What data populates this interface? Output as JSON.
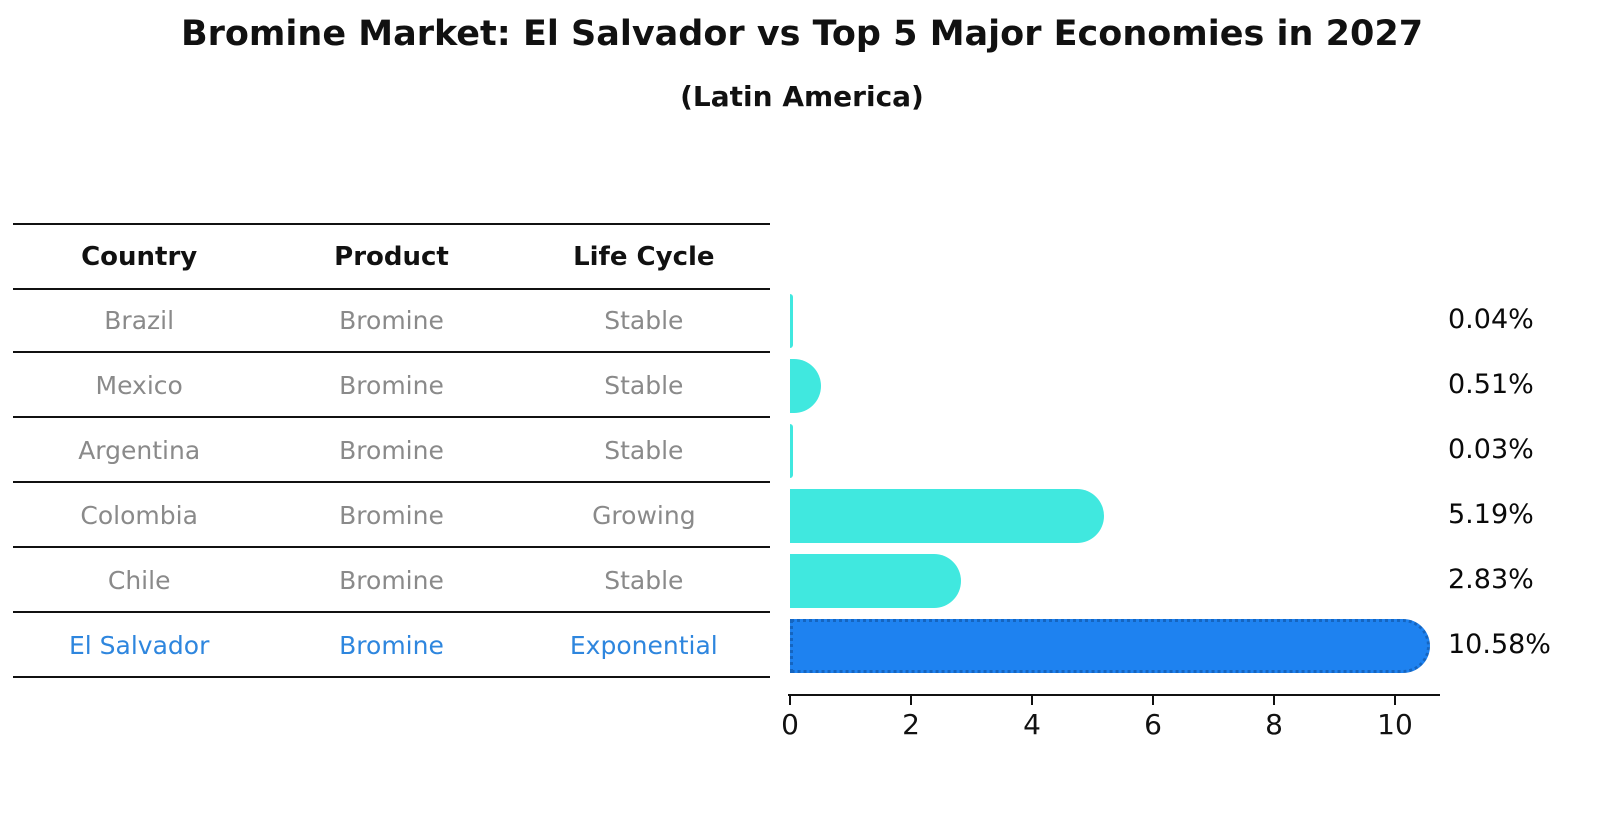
{
  "title": "Bromine Market: El Salvador vs Top 5 Major Economies in 2027",
  "subtitle": "(Latin America)",
  "table": {
    "headers": [
      "Country",
      "Product",
      "Life Cycle"
    ],
    "rows": [
      {
        "country": "Brazil",
        "product": "Bromine",
        "life_cycle": "Stable",
        "highlight": false
      },
      {
        "country": "Mexico",
        "product": "Bromine",
        "life_cycle": "Stable",
        "highlight": false
      },
      {
        "country": "Argentina",
        "product": "Bromine",
        "life_cycle": "Stable",
        "highlight": false
      },
      {
        "country": "Colombia",
        "product": "Bromine",
        "life_cycle": "Growing",
        "highlight": false
      },
      {
        "country": "Chile",
        "product": "Bromine",
        "life_cycle": "Stable",
        "highlight": false
      },
      {
        "country": "El Salvador",
        "product": "Bromine",
        "life_cycle": "Exponential",
        "highlight": true
      }
    ]
  },
  "chart_data": {
    "type": "bar",
    "orientation": "horizontal",
    "title": "Bromine Market: El Salvador vs Top 5 Major Economies in 2027",
    "subtitle": "(Latin America)",
    "categories": [
      "Brazil",
      "Mexico",
      "Argentina",
      "Colombia",
      "Chile",
      "El Salvador"
    ],
    "values": [
      0.04,
      0.51,
      0.03,
      5.19,
      2.83,
      10.58
    ],
    "value_labels": [
      "0.04%",
      "0.51%",
      "0.03%",
      "5.19%",
      "2.83%",
      "10.58%"
    ],
    "xlabel": "",
    "ylabel": "",
    "xlim": [
      0,
      10.75
    ],
    "xticks": [
      0,
      2,
      4,
      6,
      8,
      10
    ],
    "grid": false,
    "legend": "none",
    "highlight_index": 5,
    "colors": {
      "bar": "#40e8df",
      "highlight_bar": "#1e82f0",
      "highlight_bar_border": "#1565c0",
      "highlight_text": "#2e86de",
      "table_text": "#8a8a8a",
      "axis": "#111111"
    }
  }
}
